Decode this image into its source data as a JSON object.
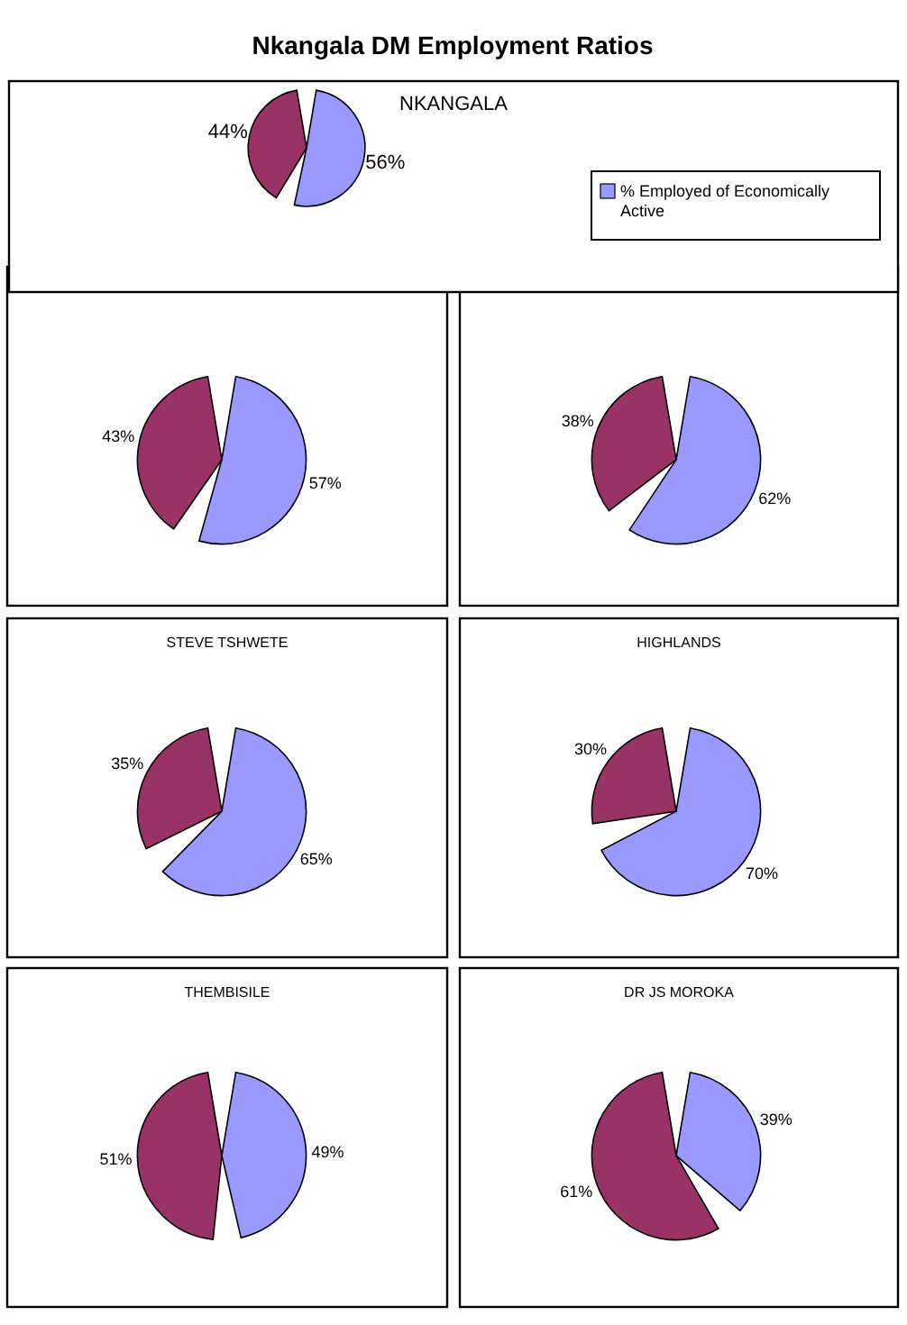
{
  "chart_data": [
    {
      "type": "pie",
      "title": "Nkangala DM Employment Ratios",
      "subtitle": "NKANGALA",
      "categories": [
        "% Employed of Economically Active",
        null
      ],
      "values": [
        56,
        44
      ],
      "colors": [
        "#9999ff",
        "#993366"
      ],
      "value_labels": [
        "56%",
        "44%"
      ],
      "legend": "right"
    },
    {
      "type": "pie",
      "categories": [
        null,
        null
      ],
      "values": [
        57,
        43
      ],
      "colors": [
        "#9999ff",
        "#993366"
      ],
      "value_labels": [
        "57%",
        "43%"
      ]
    },
    {
      "type": "pie",
      "categories": [
        null,
        null
      ],
      "values": [
        62,
        38
      ],
      "colors": [
        "#9999ff",
        "#993366"
      ],
      "value_labels": [
        "62%",
        "38%"
      ]
    },
    {
      "type": "pie",
      "title": "STEVE TSHWETE",
      "categories": [
        null,
        null
      ],
      "values": [
        65,
        35
      ],
      "colors": [
        "#9999ff",
        "#993366"
      ],
      "value_labels": [
        "65%",
        "35%"
      ]
    },
    {
      "type": "pie",
      "title": "HIGHLANDS",
      "categories": [
        null,
        null
      ],
      "values": [
        70,
        30
      ],
      "colors": [
        "#9999ff",
        "#993366"
      ],
      "value_labels": [
        "70%",
        "30%"
      ]
    },
    {
      "type": "pie",
      "title": "THEMBISILE",
      "categories": [
        null,
        null
      ],
      "values": [
        49,
        51
      ],
      "colors": [
        "#9999ff",
        "#993366"
      ],
      "value_labels": [
        "49%",
        "51%"
      ]
    },
    {
      "type": "pie",
      "title": "DR JS MOROKA",
      "categories": [
        null,
        null
      ],
      "values": [
        39,
        61
      ],
      "colors": [
        "#9999ff",
        "#993366"
      ],
      "value_labels": [
        "39%",
        "61%"
      ]
    }
  ]
}
